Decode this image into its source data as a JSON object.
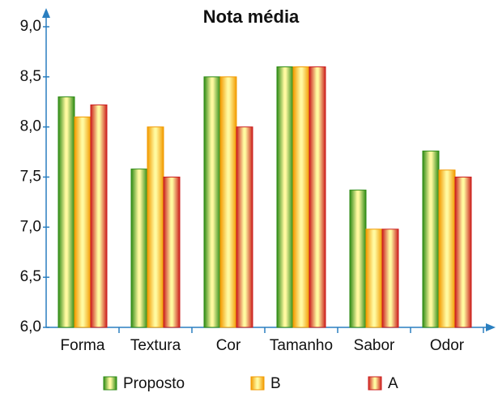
{
  "chart_data": {
    "type": "bar",
    "title": "Nota média",
    "categories": [
      "Forma",
      "Textura",
      "Cor",
      "Tamanho",
      "Sabor",
      "Odor"
    ],
    "series": [
      {
        "name": "Proposto",
        "color": "#2e8b16",
        "values": [
          8.3,
          7.58,
          8.5,
          8.6,
          7.37,
          7.76
        ]
      },
      {
        "name": "B",
        "color": "#f29a00",
        "values": [
          8.1,
          8.0,
          8.5,
          8.6,
          6.98,
          7.57
        ]
      },
      {
        "name": "A",
        "color": "#cc1f1f",
        "values": [
          8.22,
          7.5,
          8.0,
          8.6,
          6.98,
          7.5
        ]
      }
    ],
    "ylim": [
      6,
      9
    ],
    "yticks": [
      {
        "value": 6,
        "label": "6,0"
      },
      {
        "value": 6.5,
        "label": "6,5"
      },
      {
        "value": 7,
        "label": "7,0"
      },
      {
        "value": 7.5,
        "label": "7,5"
      },
      {
        "value": 8,
        "label": "8,0"
      },
      {
        "value": 8.5,
        "label": "8,5"
      },
      {
        "value": 9,
        "label": "9,0"
      }
    ],
    "grid": false
  }
}
